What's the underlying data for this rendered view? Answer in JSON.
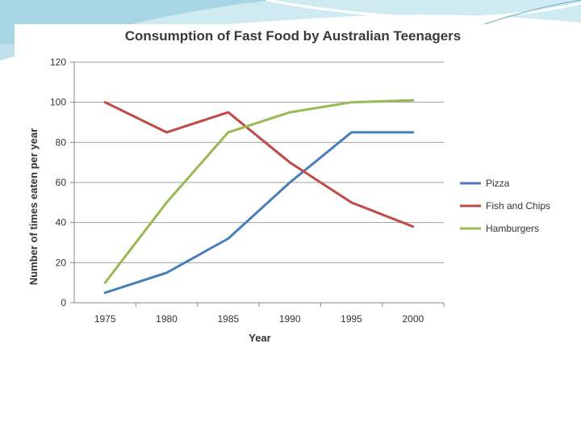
{
  "chart_data": {
    "type": "line",
    "title": "Consumption of Fast Food by Australian Teenagers",
    "xlabel": "Year",
    "ylabel": "Number of times eaten per year",
    "categories": [
      "1975",
      "1980",
      "1985",
      "1990",
      "1995",
      "2000"
    ],
    "ylim": [
      0,
      120
    ],
    "yticks": [
      "0",
      "20",
      "40",
      "60",
      "80",
      "100",
      "120"
    ],
    "grid": true,
    "legend_position": "right",
    "series": [
      {
        "name": "Pizza",
        "color": "#4a7ebb",
        "values": [
          5,
          15,
          32,
          60,
          85,
          85
        ]
      },
      {
        "name": "Fish and Chips",
        "color": "#be4b48",
        "values": [
          100,
          85,
          95,
          70,
          50,
          38
        ]
      },
      {
        "name": "Hamburgers",
        "color": "#98b954",
        "values": [
          10,
          50,
          85,
          95,
          100,
          101
        ]
      }
    ]
  }
}
